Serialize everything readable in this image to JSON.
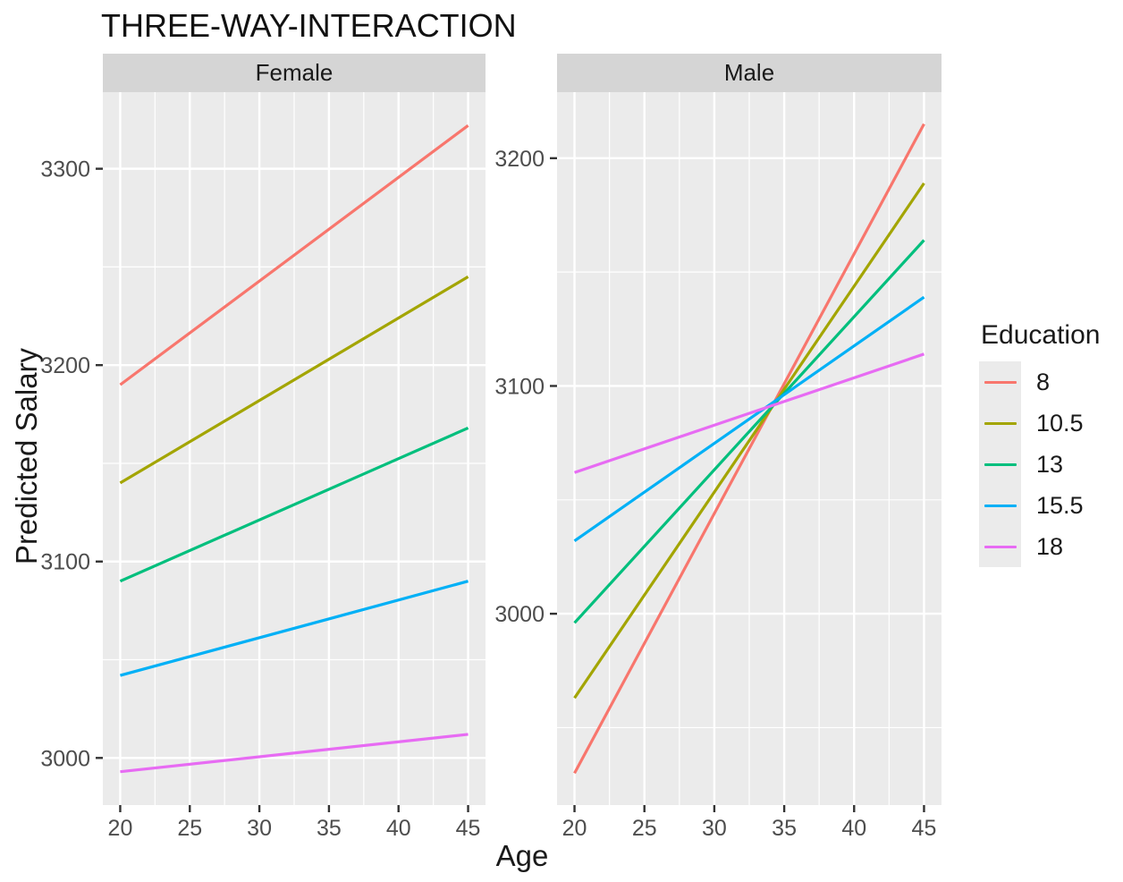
{
  "chart_data": {
    "type": "line",
    "title": "THREE-WAY-INTERACTION",
    "xlabel": "Age",
    "ylabel": "Predicted Salary",
    "legend_title": "Education",
    "legend_position": "right",
    "x": [
      20,
      45
    ],
    "xlim": [
      18.75,
      46.25
    ],
    "x_ticks": [
      20,
      25,
      30,
      35,
      40,
      45
    ],
    "grid": "on",
    "facets": [
      {
        "label": "Female",
        "ylim": [
          2976,
          3339
        ],
        "y_ticks": [
          3000,
          3100,
          3200,
          3300
        ],
        "series": [
          {
            "name": "8",
            "color": "#F8766D",
            "values": [
              3190,
              3322
            ]
          },
          {
            "name": "10.5",
            "color": "#A3A500",
            "values": [
              3140,
              3245
            ]
          },
          {
            "name": "13",
            "color": "#00BF7D",
            "values": [
              3090,
              3168
            ]
          },
          {
            "name": "15.5",
            "color": "#00B0F6",
            "values": [
              3042,
              3090
            ]
          },
          {
            "name": "18",
            "color": "#E76BF3",
            "values": [
              2993,
              3012
            ]
          }
        ]
      },
      {
        "label": "Male",
        "ylim": [
          2916,
          3229
        ],
        "y_ticks": [
          3000,
          3100,
          3200
        ],
        "series": [
          {
            "name": "8",
            "color": "#F8766D",
            "values": [
              2930,
              3215
            ]
          },
          {
            "name": "10.5",
            "color": "#A3A500",
            "values": [
              2963,
              3189
            ]
          },
          {
            "name": "13",
            "color": "#00BF7D",
            "values": [
              2996,
              3164
            ]
          },
          {
            "name": "15.5",
            "color": "#00B0F6",
            "values": [
              3032,
              3139
            ]
          },
          {
            "name": "18",
            "color": "#E76BF3",
            "values": [
              3062,
              3114
            ]
          }
        ]
      }
    ],
    "legend_entries": [
      {
        "label": "8",
        "color": "#F8766D"
      },
      {
        "label": "10.5",
        "color": "#A3A500"
      },
      {
        "label": "13",
        "color": "#00BF7D"
      },
      {
        "label": "15.5",
        "color": "#00B0F6"
      },
      {
        "label": "18",
        "color": "#E76BF3"
      }
    ],
    "style": {
      "panel_bg": "#EBEBEB",
      "strip_bg": "#D5D5D5",
      "grid_color": "#FFFFFF",
      "tick_text_color": "#4D4D4D",
      "tick_mark_color": "#333333",
      "strip_text_color": "#1a1a1a"
    }
  }
}
